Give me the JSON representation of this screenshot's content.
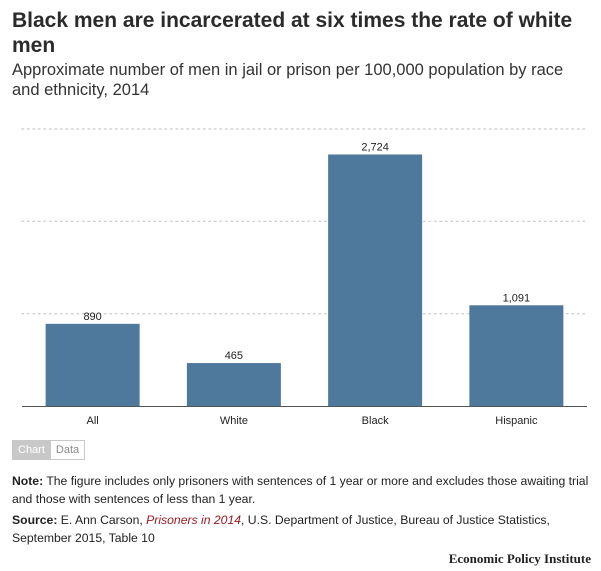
{
  "chart_data": {
    "type": "bar",
    "title": "Black men are incarcerated at six times the rate of white men",
    "subtitle": "Approximate number of men in jail or prison per 100,000 population by race and ethnicity, 2014",
    "categories": [
      "All",
      "White",
      "Black",
      "Hispanic"
    ],
    "values": [
      890,
      465,
      2724,
      1091
    ],
    "value_labels": [
      "890",
      "465",
      "2,724",
      "1,091"
    ],
    "xlabel": "",
    "ylabel": "",
    "ylim": [
      0,
      3000
    ],
    "gridlines": [
      1000,
      2000,
      3000
    ],
    "grid": true,
    "bar_color": "#4f789d"
  },
  "tabs": {
    "chart": "Chart",
    "data": "Data"
  },
  "note": {
    "label": "Note:",
    "text": "The figure includes only prisoners with sentences of 1 year or more and excludes those awaiting trial and those with sentences of less than 1 year."
  },
  "source": {
    "label": "Source:",
    "pre": "E. Ann Carson,",
    "publication": "Prisoners in 2014",
    "post": ", U.S. Department of Justice, Bureau of Justice Statistics, September 2015, Table 10"
  },
  "brand": "Economic Policy Institute"
}
